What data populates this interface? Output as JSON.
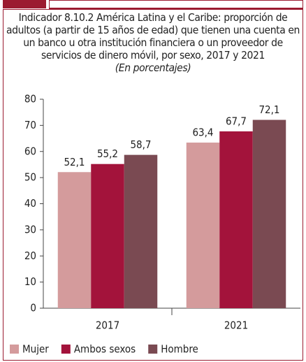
{
  "chart_data": {
    "type": "bar",
    "title": "Indicador 8.10.2 América Latina y el Caribe: proporción de adultos (a partir de 15 años de edad) que tienen una cuenta en un banco u otra institución financiera o un proveedor de servicios de dinero móvil, por sexo, 2017 y 2021",
    "subtitle": "(En porcentajes)",
    "categories": [
      "2017",
      "2021"
    ],
    "series": [
      {
        "name": "Mujer",
        "color": "#d49b9c",
        "values": [
          52.1,
          63.4
        ],
        "value_labels": [
          "52,1",
          "63,4"
        ]
      },
      {
        "name": "Ambos sexos",
        "color": "#a3133b",
        "values": [
          55.2,
          67.7
        ],
        "value_labels": [
          "55,2",
          "67,7"
        ]
      },
      {
        "name": "Hombre",
        "color": "#7a4a52",
        "values": [
          58.7,
          72.1
        ],
        "value_labels": [
          "58,7",
          "72,1"
        ]
      }
    ],
    "ylim": [
      0,
      80
    ],
    "yticks": [
      0,
      10,
      20,
      30,
      40,
      50,
      60,
      70,
      80
    ],
    "grid": false,
    "legend": "bottom"
  }
}
